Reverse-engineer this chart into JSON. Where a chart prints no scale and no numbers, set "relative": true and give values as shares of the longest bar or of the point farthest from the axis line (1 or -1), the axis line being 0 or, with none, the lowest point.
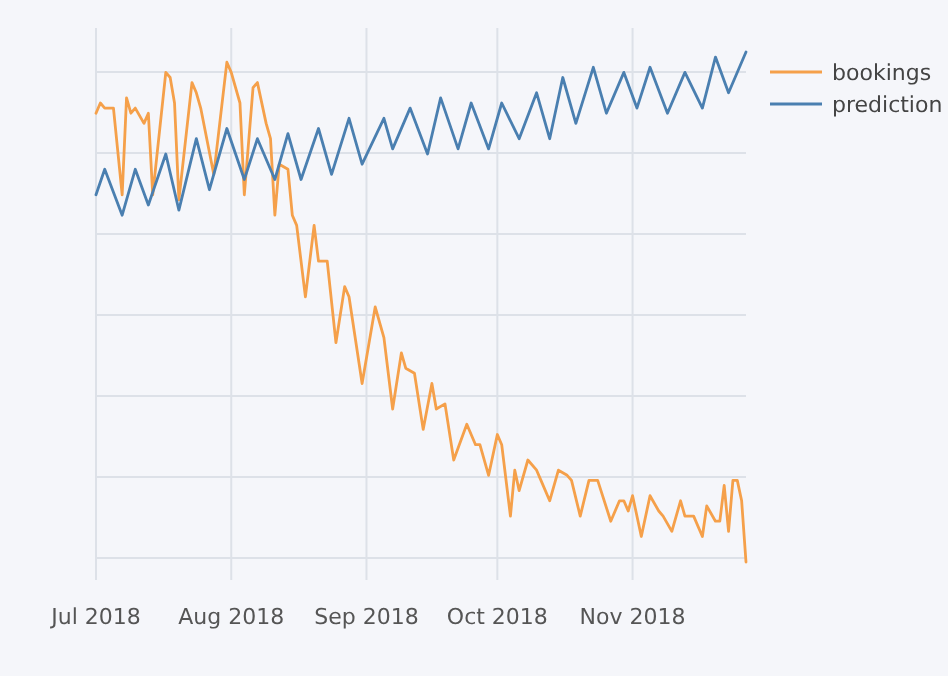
{
  "chart_data": {
    "type": "line",
    "relative": true,
    "grid": true,
    "legend": "top right",
    "marker": "none",
    "line_style": "solid",
    "xlim": [
      "2018-07-01",
      "2018-11-27"
    ],
    "xticks": [
      {
        "value": "2018-07-01",
        "label": "Jul 2018"
      },
      {
        "value": "2018-08-01",
        "label": "Aug 2018"
      },
      {
        "value": "2018-09-01",
        "label": "Sep 2018"
      },
      {
        "value": "2018-10-01",
        "label": "Oct 2018"
      },
      {
        "value": "2018-11-01",
        "label": "Nov 2018"
      }
    ],
    "series": [
      {
        "name": "bookings",
        "color": "#f5a04a",
        "x": [
          "2018-07-01",
          "2018-07-02",
          "2018-07-03",
          "2018-07-05",
          "2018-07-07",
          "2018-07-08",
          "2018-07-09",
          "2018-07-10",
          "2018-07-12",
          "2018-07-13",
          "2018-07-14",
          "2018-07-17",
          "2018-07-18",
          "2018-07-19",
          "2018-07-20",
          "2018-07-23",
          "2018-07-24",
          "2018-07-25",
          "2018-07-28",
          "2018-07-31",
          "2018-08-01",
          "2018-08-03",
          "2018-08-04",
          "2018-08-06",
          "2018-08-07",
          "2018-08-09",
          "2018-08-10",
          "2018-08-11",
          "2018-08-12",
          "2018-08-14",
          "2018-08-15",
          "2018-08-16",
          "2018-08-18",
          "2018-08-20",
          "2018-08-21",
          "2018-08-23",
          "2018-08-25",
          "2018-08-27",
          "2018-08-28",
          "2018-08-31",
          "2018-09-03",
          "2018-09-05",
          "2018-09-07",
          "2018-09-09",
          "2018-09-10",
          "2018-09-12",
          "2018-09-14",
          "2018-09-16",
          "2018-09-17",
          "2018-09-19",
          "2018-09-21",
          "2018-09-24",
          "2018-09-26",
          "2018-09-27",
          "2018-09-29",
          "2018-10-01",
          "2018-10-02",
          "2018-10-04",
          "2018-10-05",
          "2018-10-06",
          "2018-10-08",
          "2018-10-10",
          "2018-10-11",
          "2018-10-13",
          "2018-10-15",
          "2018-10-17",
          "2018-10-18",
          "2018-10-20",
          "2018-10-22",
          "2018-10-24",
          "2018-10-27",
          "2018-10-29",
          "2018-10-30",
          "2018-10-31",
          "2018-11-01",
          "2018-11-03",
          "2018-11-05",
          "2018-11-07",
          "2018-11-08",
          "2018-11-10",
          "2018-11-12",
          "2018-11-13",
          "2018-11-15",
          "2018-11-17",
          "2018-11-18",
          "2018-11-20",
          "2018-11-21",
          "2018-11-22",
          "2018-11-23",
          "2018-11-24",
          "2018-11-25",
          "2018-11-26",
          "2018-11-27"
        ],
        "values": [
          0.88,
          0.9,
          0.89,
          0.89,
          0.72,
          0.91,
          0.88,
          0.89,
          0.86,
          0.88,
          0.72,
          0.96,
          0.95,
          0.9,
          0.71,
          0.94,
          0.92,
          0.89,
          0.76,
          0.98,
          0.96,
          0.9,
          0.72,
          0.93,
          0.94,
          0.86,
          0.83,
          0.68,
          0.78,
          0.77,
          0.68,
          0.66,
          0.52,
          0.66,
          0.59,
          0.59,
          0.43,
          0.54,
          0.52,
          0.35,
          0.5,
          0.44,
          0.3,
          0.41,
          0.38,
          0.37,
          0.26,
          0.35,
          0.3,
          0.31,
          0.2,
          0.27,
          0.23,
          0.23,
          0.17,
          0.25,
          0.23,
          0.09,
          0.18,
          0.14,
          0.2,
          0.18,
          0.16,
          0.12,
          0.18,
          0.17,
          0.16,
          0.09,
          0.16,
          0.16,
          0.08,
          0.12,
          0.12,
          0.1,
          0.13,
          0.05,
          0.13,
          0.1,
          0.09,
          0.06,
          0.12,
          0.09,
          0.09,
          0.05,
          0.11,
          0.08,
          0.08,
          0.15,
          0.06,
          0.16,
          0.16,
          0.12,
          0.0
        ]
      },
      {
        "name": "prediction",
        "color": "#4a7fb0",
        "x": [
          "2018-07-01",
          "2018-07-03",
          "2018-07-07",
          "2018-07-10",
          "2018-07-13",
          "2018-07-17",
          "2018-07-20",
          "2018-07-24",
          "2018-07-27",
          "2018-07-31",
          "2018-08-04",
          "2018-08-07",
          "2018-08-11",
          "2018-08-14",
          "2018-08-17",
          "2018-08-21",
          "2018-08-24",
          "2018-08-28",
          "2018-08-31",
          "2018-09-05",
          "2018-09-07",
          "2018-09-11",
          "2018-09-15",
          "2018-09-18",
          "2018-09-22",
          "2018-09-25",
          "2018-09-29",
          "2018-10-02",
          "2018-10-06",
          "2018-10-10",
          "2018-10-13",
          "2018-10-16",
          "2018-10-19",
          "2018-10-23",
          "2018-10-26",
          "2018-10-30",
          "2018-11-02",
          "2018-11-05",
          "2018-11-09",
          "2018-11-13",
          "2018-11-17",
          "2018-11-20",
          "2018-11-23",
          "2018-11-27"
        ],
        "values": [
          0.72,
          0.77,
          0.68,
          0.77,
          0.7,
          0.8,
          0.69,
          0.83,
          0.73,
          0.85,
          0.75,
          0.83,
          0.75,
          0.84,
          0.75,
          0.85,
          0.76,
          0.87,
          0.78,
          0.87,
          0.81,
          0.89,
          0.8,
          0.91,
          0.81,
          0.9,
          0.81,
          0.9,
          0.83,
          0.92,
          0.83,
          0.95,
          0.86,
          0.97,
          0.88,
          0.96,
          0.89,
          0.97,
          0.88,
          0.96,
          0.89,
          0.99,
          0.92,
          1.0
        ]
      }
    ]
  }
}
